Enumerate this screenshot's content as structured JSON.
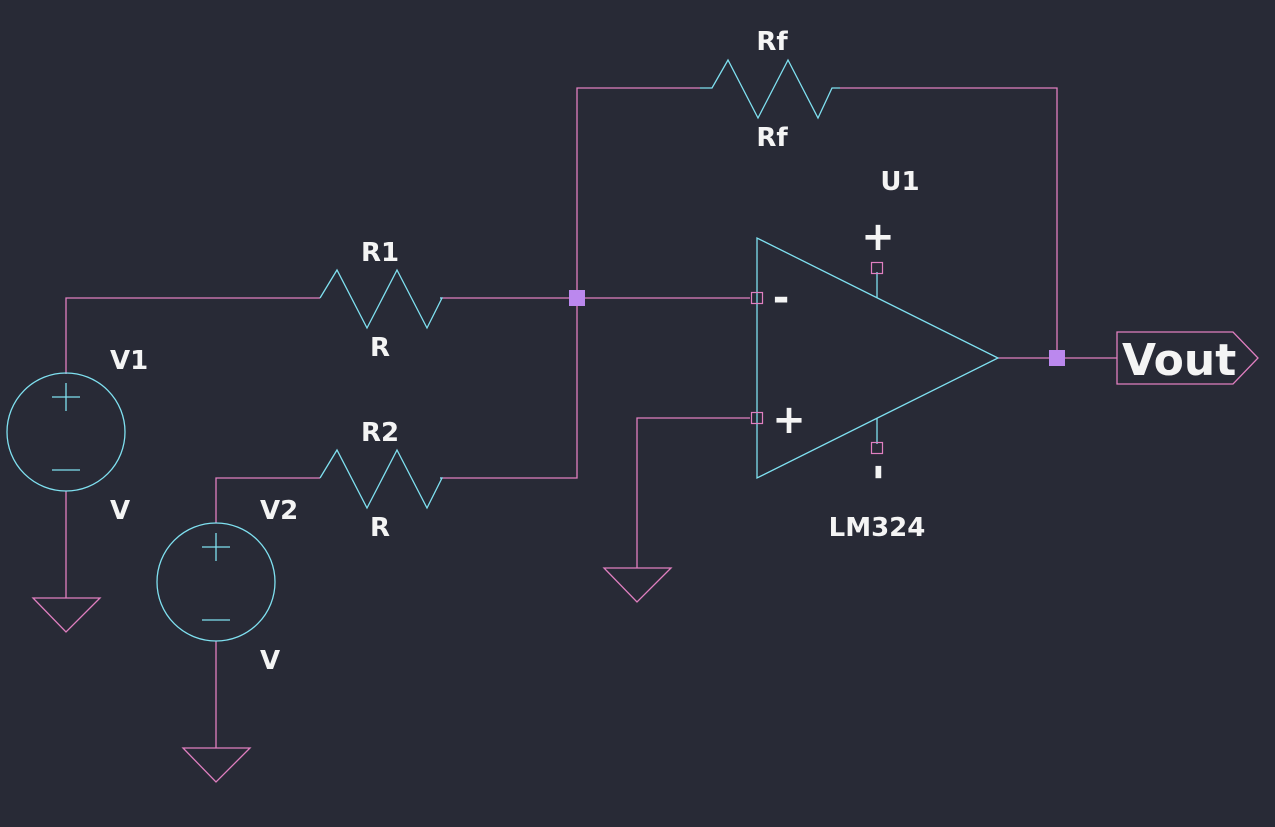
{
  "components": {
    "rf": {
      "ref": "Rf",
      "value": "Rf"
    },
    "r1": {
      "ref": "R1",
      "value": "R"
    },
    "r2": {
      "ref": "R2",
      "value": "R"
    },
    "v1": {
      "ref": "V1",
      "value": "V"
    },
    "v2": {
      "ref": "V2",
      "value": "V"
    },
    "u1": {
      "ref": "U1",
      "value": "LM324",
      "inverting_sign": "-",
      "noninverting_sign": "+",
      "supply_pos_sign": "+",
      "supply_neg_sign": "-"
    }
  },
  "net_labels": {
    "output": "Vout"
  },
  "colors": {
    "background": "#282a36",
    "wire": "#e07fc0",
    "symbol": "#7fe0f0",
    "junction": "#bb88ee",
    "text": "#f4f4f4"
  }
}
